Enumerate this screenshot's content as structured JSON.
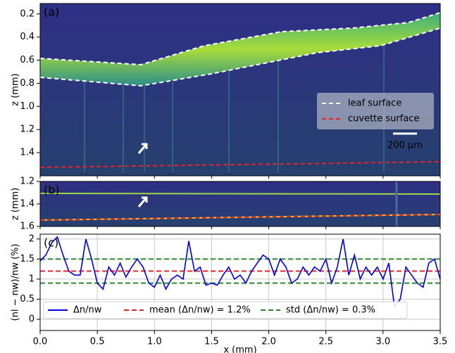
{
  "chart_data": [
    {
      "type": "image",
      "label": "(a)",
      "ylabel": "z (mm)",
      "ylim": [
        1.6,
        0.11
      ],
      "yticks": [
        0.2,
        0.4,
        0.6,
        0.8,
        {
          "value": 1,
          "label": "1.0"
        },
        1.2,
        1.4
      ],
      "legend_entries": [
        {
          "name": "leaf surface",
          "color": "#ffffff"
        },
        {
          "name": "cuvette surface",
          "color": "#e8242a"
        }
      ],
      "scale_bar": "200 µm"
    },
    {
      "type": "image",
      "label": "(b)",
      "ylabel": "z (mm)",
      "ylim": [
        1.6,
        1.2
      ],
      "yticks": [
        1.2,
        1.4,
        1.6
      ]
    },
    {
      "type": "line",
      "label": "(c)",
      "xlabel": "x (mm)",
      "ylabel": "(nl − nw)/nw (%)",
      "x": [
        0,
        0.05,
        0.1,
        0.15,
        0.2,
        0.25,
        0.3,
        0.35,
        0.4,
        0.45,
        0.5,
        0.55,
        0.6,
        0.65,
        0.7,
        0.75,
        0.8,
        0.85,
        0.9,
        0.95,
        1,
        1.05,
        1.1,
        1.15,
        1.2,
        1.25,
        1.3,
        1.35,
        1.4,
        1.45,
        1.5,
        1.55,
        1.6,
        1.65,
        1.7,
        1.75,
        1.8,
        1.85,
        1.9,
        1.95,
        2,
        2.05,
        2.1,
        2.15,
        2.2,
        2.25,
        2.3,
        2.35,
        2.4,
        2.45,
        2.5,
        2.55,
        2.6,
        2.65,
        2.7,
        2.75,
        2.8,
        2.85,
        2.9,
        2.95,
        3,
        3.05,
        3.1,
        3.15,
        3.2,
        3.25,
        3.3,
        3.35,
        3.4,
        3.45,
        3.5
      ],
      "series": [
        {
          "name": "Δn/nw",
          "color": "#0000dd",
          "values": [
            1.45,
            1.6,
            1.9,
            2.05,
            1.6,
            1.2,
            1.1,
            1.1,
            2.0,
            1.5,
            0.9,
            0.75,
            1.3,
            1.1,
            1.4,
            1.05,
            1.3,
            1.5,
            1.3,
            0.9,
            0.8,
            1.1,
            0.75,
            1.0,
            1.1,
            1.0,
            1.95,
            1.2,
            1.3,
            0.85,
            0.9,
            0.85,
            1.1,
            1.3,
            1.0,
            1.1,
            0.9,
            1.2,
            1.4,
            1.6,
            1.5,
            1.1,
            1.5,
            1.3,
            0.9,
            1.0,
            1.3,
            1.1,
            1.3,
            1.2,
            1.5,
            0.9,
            1.3,
            2.0,
            1.1,
            1.6,
            1.0,
            1.3,
            1.1,
            1.3,
            1.0,
            1.4,
            0.3,
            0.5,
            1.3,
            1.1,
            0.9,
            0.8,
            1.4,
            1.5,
            1.0
          ]
        }
      ],
      "hlines": [
        {
          "name": "mean (Δn/nw) = 1.2%",
          "color": "#e8242a",
          "values": [
            1.2
          ]
        },
        {
          "name": "std (Δn/nw) = 0.3%",
          "color": "#2a8a2a",
          "values": [
            0.9,
            1.5
          ]
        }
      ],
      "xlim": [
        0,
        3.5
      ],
      "xticks": [
        {
          "value": 0,
          "label": "0.0"
        },
        0.5,
        {
          "value": 1,
          "label": "1.0"
        },
        1.5,
        {
          "value": 2,
          "label": "2.0"
        },
        2.5,
        {
          "value": 3,
          "label": "3.0"
        },
        3.5
      ],
      "ylim": [
        -0.28,
        2.12
      ],
      "yticks": [
        0,
        0.5,
        1,
        1.5,
        2
      ],
      "grid": true
    }
  ]
}
